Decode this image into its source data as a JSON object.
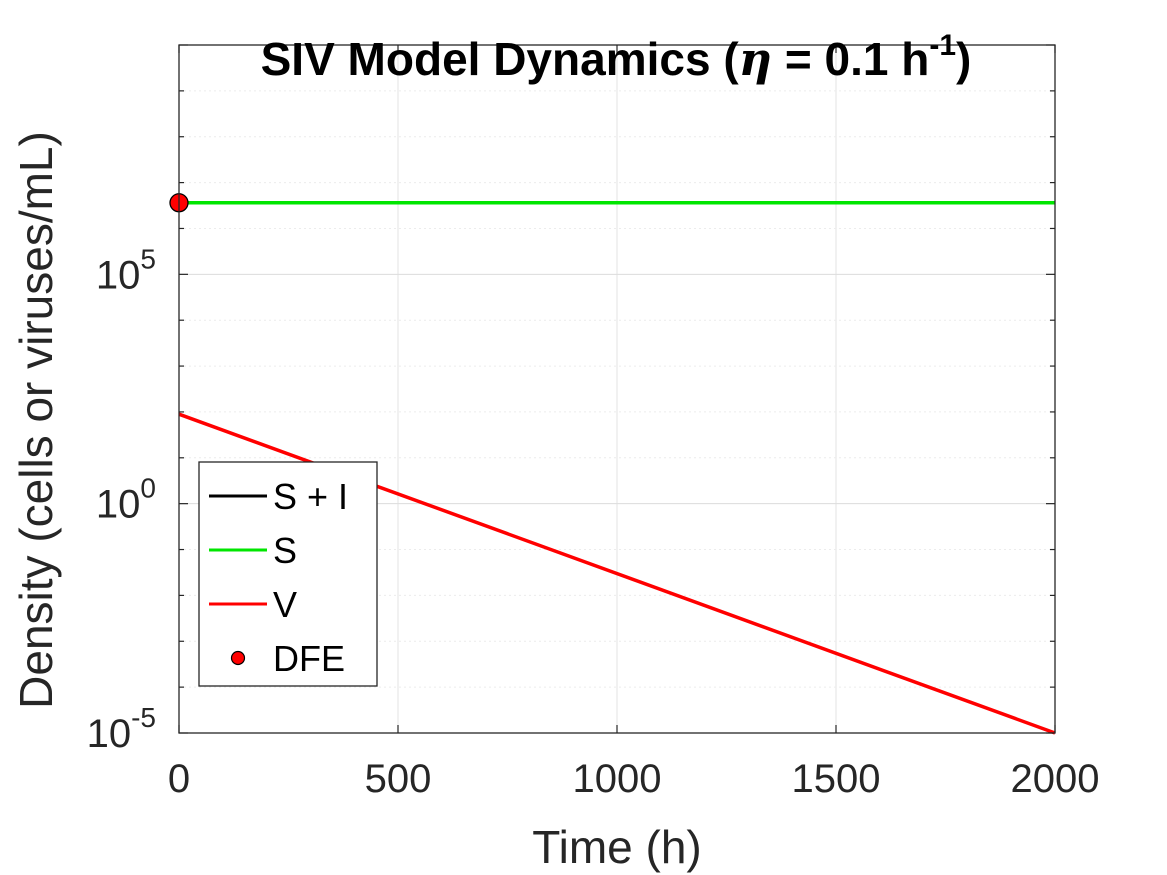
{
  "chart_data": {
    "type": "line",
    "title_parts": {
      "prefix": "SIV Model Dynamics (",
      "symbol": "η",
      "middle": " = 0.1 h",
      "exponent": "-1",
      "suffix": ")"
    },
    "xlabel": "Time (h)",
    "ylabel": "Density (cells or viruses/mL)",
    "xlim": [
      0,
      2000
    ],
    "ylim_log10": [
      -5,
      10
    ],
    "y_scale": "log",
    "grid": true,
    "x_ticks": [
      0,
      500,
      1000,
      1500,
      2000
    ],
    "y_ticks": [
      {
        "base": "10",
        "exp": "5",
        "log10": 5
      },
      {
        "base": "10",
        "exp": "0",
        "log10": 0
      },
      {
        "base": "10",
        "exp": "-5",
        "log10": -5
      }
    ],
    "legend_position": "bottom-left",
    "colors": {
      "SI": "#000000",
      "S": "#00e600",
      "V": "#ff0000",
      "DFE": "#ff0000"
    },
    "series": [
      {
        "name": "S + I",
        "key": "SI",
        "x": [
          0,
          2000
        ],
        "y_log10": [
          6.56,
          6.56
        ]
      },
      {
        "name": "S",
        "key": "S",
        "x": [
          0,
          2000
        ],
        "y_log10": [
          6.56,
          6.56
        ]
      },
      {
        "name": "V",
        "key": "V",
        "x": [
          0,
          2000
        ],
        "y_log10": [
          1.95,
          -5
        ]
      }
    ],
    "points": [
      {
        "name": "DFE",
        "key": "DFE",
        "x": 0,
        "y_log10": 6.56
      }
    ]
  }
}
